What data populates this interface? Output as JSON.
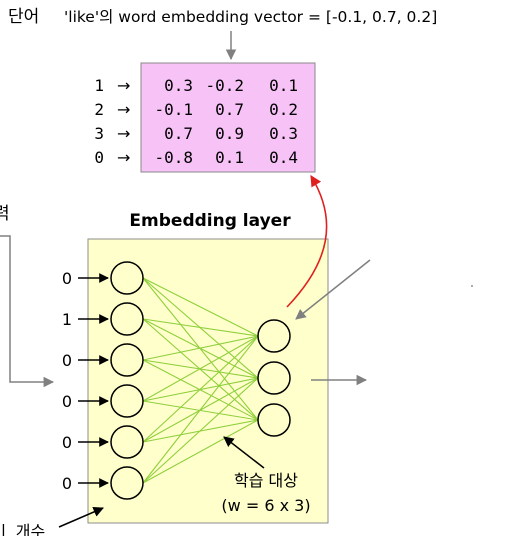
{
  "header": {
    "word_label": "단어",
    "vector_caption": "'like'의 word embedding vector = [-0.1, 0.7, 0.2]"
  },
  "lookup_table": {
    "fill_color": "#f7c3f7",
    "rows": [
      {
        "index": "1",
        "arrow": "→",
        "values": [
          "0.3",
          "-0.2",
          "0.1"
        ]
      },
      {
        "index": "2",
        "arrow": "→",
        "values": [
          "-0.1",
          "0.7",
          "0.2"
        ]
      },
      {
        "index": "3",
        "arrow": "→",
        "values": [
          "0.7",
          "0.9",
          "0.3"
        ]
      },
      {
        "index": "0",
        "arrow": "→",
        "values": [
          "-0.8",
          "0.1",
          "0.4"
        ]
      }
    ]
  },
  "left_partial_label": "력",
  "bottom_left_partial_label": "ㅣ 개수",
  "embedding_layer": {
    "title": "Embedding layer",
    "fill_color": "#ffffcc",
    "input_values": [
      "0",
      "1",
      "0",
      "0",
      "0",
      "0"
    ],
    "output_node_count": 3,
    "connection_color": "#8fcf3c",
    "training_label_line1": "학습 대상",
    "training_label_line2": "(w = 6 x 3)"
  },
  "colors": {
    "lookup_arrow": "#e02020",
    "gray_arrow": "#808080"
  }
}
